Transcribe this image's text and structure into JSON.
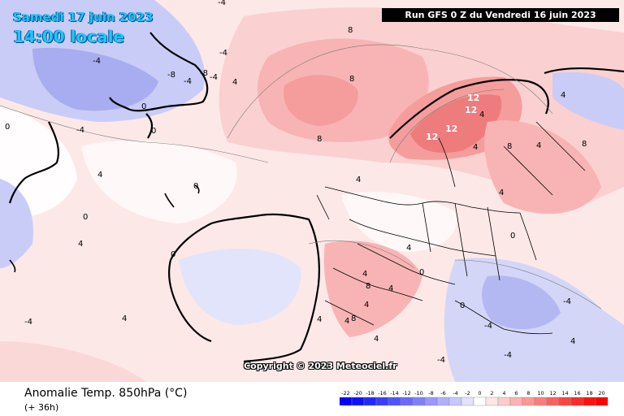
{
  "header": {
    "date": "Samedi 17 juin 2023",
    "time": "14:00 locale",
    "run": "Run GFS 0 Z du Vendredi 16 juin 2023"
  },
  "footer": {
    "title": "Anomalie Temp. 850hPa (°C)",
    "subtitle": "(+ 36h)",
    "copyright": "Copyright © 2023 Meteociel.fr"
  },
  "legend": {
    "ticks": [
      "-22",
      "-20",
      "-18",
      "-16",
      "-14",
      "-12",
      "-10",
      "-8",
      "-6",
      "-4",
      "-2",
      "0",
      "2",
      "4",
      "6",
      "8",
      "10",
      "12",
      "14",
      "16",
      "18",
      "20"
    ],
    "colors": [
      "#0000ff",
      "#1010ff",
      "#2626ff",
      "#3c3cff",
      "#5252ff",
      "#6a6aff",
      "#8080ff",
      "#9898ff",
      "#b0b0ff",
      "#c8c8ff",
      "#e2e2ff",
      "#ffffff",
      "#ffe6e6",
      "#ffcccc",
      "#ffb0b0",
      "#ff9696",
      "#ff7c7c",
      "#ff6060",
      "#ff4444",
      "#ff2a2a",
      "#ff1010",
      "#ff0000"
    ]
  },
  "contour_labels": [
    {
      "text": "-4"
    },
    {
      "text": "-4"
    },
    {
      "text": "-8"
    },
    {
      "text": "-4"
    },
    {
      "text": "-8"
    },
    {
      "text": "-4"
    },
    {
      "text": "-4"
    },
    {
      "text": "-4"
    },
    {
      "text": "0"
    },
    {
      "text": "0"
    },
    {
      "text": "0"
    },
    {
      "text": "4"
    },
    {
      "text": "8"
    },
    {
      "text": "8"
    },
    {
      "text": "8"
    },
    {
      "text": "8"
    },
    {
      "text": "4"
    },
    {
      "text": "4"
    },
    {
      "text": "0"
    },
    {
      "text": "4"
    },
    {
      "text": "0"
    },
    {
      "text": "0"
    },
    {
      "text": "4"
    },
    {
      "text": "4"
    },
    {
      "text": "4"
    },
    {
      "text": "0"
    },
    {
      "text": "0"
    },
    {
      "text": "-4"
    },
    {
      "text": "4"
    },
    {
      "text": "4"
    },
    {
      "text": "4"
    },
    {
      "text": "8"
    },
    {
      "text": "8"
    },
    {
      "text": "4"
    },
    {
      "text": "4"
    },
    {
      "text": "0"
    },
    {
      "text": "-4"
    },
    {
      "text": "-4"
    },
    {
      "text": "-4"
    },
    {
      "text": "4"
    },
    {
      "text": "4"
    },
    {
      "text": "8"
    },
    {
      "text": "4"
    },
    {
      "text": "4"
    },
    {
      "text": "-4"
    },
    {
      "text": "4"
    },
    {
      "text": "4"
    }
  ],
  "hot_labels": [
    {
      "text": "12"
    },
    {
      "text": "12"
    },
    {
      "text": "12"
    },
    {
      "text": "12"
    }
  ]
}
